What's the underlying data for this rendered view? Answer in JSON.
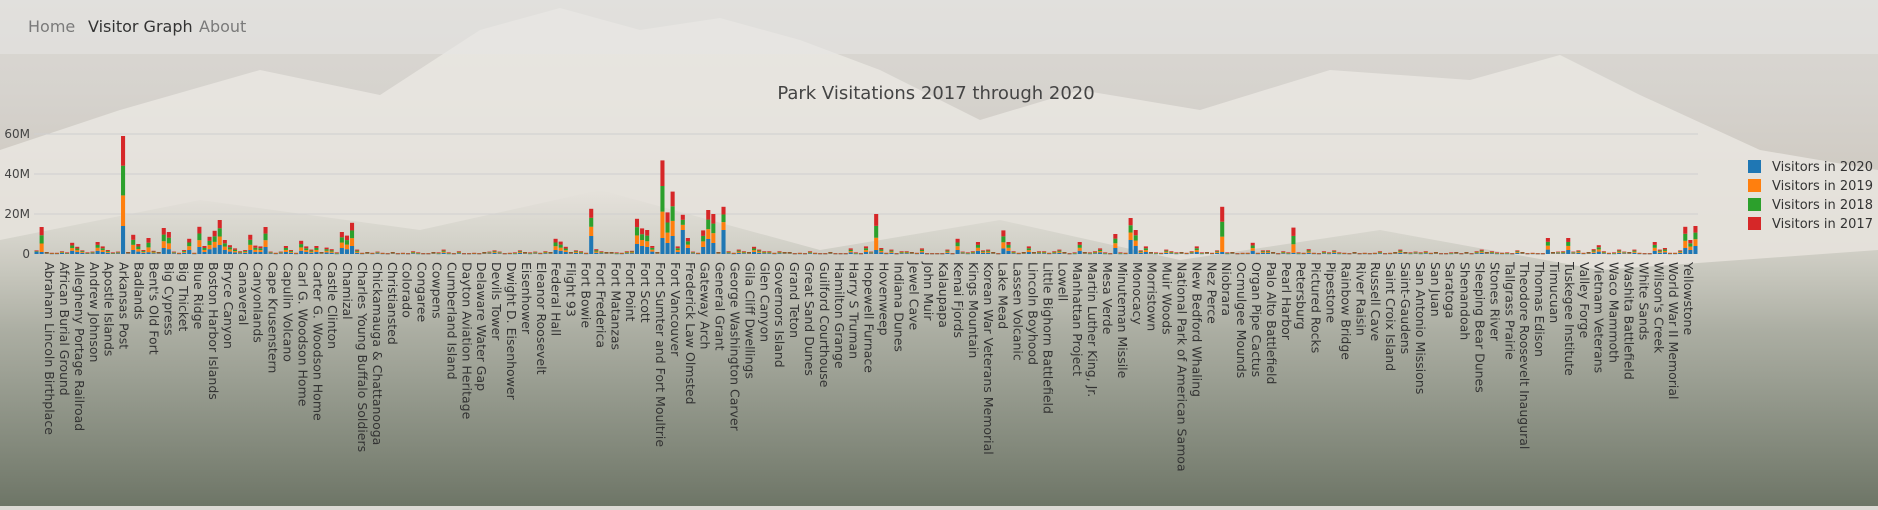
{
  "nav": {
    "items": [
      {
        "label": "Home",
        "active": false
      },
      {
        "label": "Visitor Graph",
        "active": true
      },
      {
        "label": "About",
        "active": false
      }
    ]
  },
  "colors": {
    "2020": "#1f77b4",
    "2019": "#ff7f0e",
    "2018": "#2ca02c",
    "2017": "#d62728"
  },
  "chart_data": {
    "type": "bar",
    "stacked": true,
    "title": "Park Visitations 2017 through 2020",
    "xlabel": "",
    "ylabel": "",
    "ylim": [
      0,
      60000000
    ],
    "yticks": [
      0,
      20000000,
      40000000,
      60000000
    ],
    "ytick_labels": [
      "0",
      "20M",
      "40M",
      "60M"
    ],
    "grid": true,
    "legend_position": "top-right",
    "legend": [
      "Visitors in 2020",
      "Visitors in 2019",
      "Visitors in 2018",
      "Visitors in 2017"
    ],
    "labeled_categories": [
      "Abraham Lincoln Birthplace",
      "African Burial Ground",
      "Allegheny Portage Railroad",
      "Andrew Johnson",
      "Apostle Islands",
      "Arkansas Post",
      "Badlands",
      "Bent's Old Fort",
      "Big Cypress",
      "Big Thicket",
      "Blue Ridge",
      "Boston Harbor Islands",
      "Bryce Canyon",
      "Canaveral",
      "Canyonlands",
      "Cape Krusenstern",
      "Capulin Volcano",
      "Carl G. Woodson Home",
      "Carter G. Woodson Home",
      "Castle Clinton",
      "Chamizal",
      "Charles Young Buffalo Soldiers",
      "Chickamauga & Chattanooga",
      "Christiansted",
      "Colorado",
      "Congaree",
      "Cowpens",
      "Cumberland Island",
      "Dayton Aviation Heritage",
      "Delaware Water Gap",
      "Devils Tower",
      "Dwight D. Eisenhower",
      "Eisenhower",
      "Eleanor Roosevelt",
      "Federal Hall",
      "Flight 93",
      "Fort Bowie",
      "Fort Frederica",
      "Fort Matanzas",
      "Fort Point",
      "Fort Scott",
      "Fort Sumter and Fort Moultrie",
      "Fort Vancouver",
      "Frederick Law Olmsted",
      "Gateway Arch",
      "General Grant",
      "George Washington Carver",
      "Gila Cliff Dwellings",
      "Glen Canyon",
      "Governors Island",
      "Grand Teton",
      "Great Sand Dunes",
      "Guilford Courthouse",
      "Hamilton Grange",
      "Harry S Truman",
      "Hopewell Furnace",
      "Hovenweep",
      "Indiana Dunes",
      "Jewel Cave",
      "John Muir",
      "Kalaupapa",
      "Kenai Fjords",
      "Kings Mountain",
      "Korean War Veterans Memorial",
      "Lake Mead",
      "Lassen Volcanic",
      "Lincoln Boyhood",
      "Little Bighorn Battlefield",
      "Lowell",
      "Manhattan Project",
      "Martin Luther King, Jr.",
      "Mesa Verde",
      "Minuteman Missile",
      "Monocacy",
      "Morristown",
      "Muir Woods",
      "National Park of American Samoa",
      "New Bedford Whaling",
      "Nez Perce",
      "Niobrara",
      "Ocmulgee Mounds",
      "Organ Pipe Cactus",
      "Palo Alto Battlefield",
      "Pearl Harbor",
      "Petersburg",
      "Pictured Rocks",
      "Pipestone",
      "Rainbow Bridge",
      "River Raisin",
      "Russell Cave",
      "Saint Croix Island",
      "Saint-Gaudens",
      "San Antonio Missions",
      "San Juan",
      "Saratoga",
      "Shenandoah",
      "Sleeping Bear Dunes",
      "Stones River",
      "Tallgrass Prairie",
      "Theodore Roosevelt Inaugural",
      "Thomas Edison",
      "Timucuan",
      "Tuskegee Institute",
      "Valley Forge",
      "Vietnam Veterans",
      "Waco Mammoth",
      "Washita Battlefield",
      "White Sands",
      "Wilson's Creek",
      "World War II Memorial",
      "Yellowstone"
    ],
    "bars_per_label": 3,
    "series": [
      {
        "name": "Visitors in 2020",
        "values": [
          1.3,
          1.0,
          0.3,
          0.2,
          0.2,
          0.5,
          0.3,
          1.6,
          1.0,
          0.6,
          0.3,
          0.4,
          1.6,
          1.0,
          0.6,
          0.3,
          0.4,
          14.0,
          0.4,
          2.0,
          1.2,
          0.6,
          0.9,
          0.4,
          0.4,
          3.0,
          2.4,
          0.4,
          0.2,
          0.6,
          2.0,
          0.2,
          3.5,
          1.0,
          2.4,
          3.2,
          4.5,
          2.0,
          1.2,
          0.8,
          0.4,
          0.6,
          2.0,
          1.0,
          1.0,
          3.5,
          0.4,
          0.2,
          0.4,
          1.0,
          0.6,
          0.2,
          1.6,
          1.0,
          0.6,
          1.0,
          0.3,
          0.8,
          0.6,
          0.2,
          3.0,
          2.4,
          4.0,
          0.6,
          0.2,
          0.3,
          0.2,
          0.4,
          0.2,
          0.1,
          0.3,
          0.1,
          0.2,
          0.1,
          0.4,
          0.2,
          0.1,
          0.1,
          0.3,
          0.2,
          0.6,
          0.2,
          0.1,
          0.4,
          0.1,
          0.1,
          0.2,
          0.1,
          0.3,
          0.3,
          0.5,
          0.3,
          0.1,
          0.2,
          0.2,
          0.5,
          0.3,
          0.2,
          0.3,
          0.2,
          0.4,
          0.3,
          2.0,
          1.6,
          1.0,
          0.3,
          0.5,
          0.4,
          0.2,
          9.0,
          0.6,
          0.4,
          0.3,
          0.3,
          0.2,
          0.2,
          0.4,
          0.4,
          5.0,
          4.0,
          3.5,
          1.2,
          0.3,
          8.0,
          5.5,
          9.0,
          1.0,
          12.0,
          3.0,
          0.4,
          0.2,
          3.5,
          7.5,
          5.5,
          0.3,
          12.0,
          0.4,
          0.2,
          0.6,
          0.4,
          0.3,
          1.0,
          0.6,
          0.4,
          0.4,
          0.2,
          0.4,
          0.3,
          0.3,
          0.1,
          0.2,
          0.1,
          0.4,
          0.2,
          0.1,
          0.1,
          0.3,
          0.1,
          0.1,
          0.1,
          0.8,
          0.2,
          0.1,
          1.0,
          0.3,
          2.0,
          0.8,
          0.2,
          0.6,
          0.1,
          0.4,
          0.4,
          0.3,
          0.2,
          0.8,
          0.1,
          0.1,
          0.1,
          0.1,
          0.6,
          0.1,
          2.0,
          0.3,
          0.2,
          0.4,
          1.6,
          0.5,
          0.6,
          0.3,
          0.1,
          2.8,
          1.6,
          0.4,
          0.2,
          0.3,
          1.0,
          0.3,
          0.4,
          0.4,
          0.2,
          0.4,
          0.6,
          0.3,
          0.1,
          0.2,
          1.6,
          0.3,
          0.2,
          0.4,
          0.8,
          0.2,
          0.1,
          3.0,
          0.2,
          0.2,
          7.0,
          4.0,
          0.5,
          1.0,
          0.3,
          0.2,
          0.2,
          0.6,
          0.4,
          0.2,
          0.3,
          0.2,
          0.4,
          1.0,
          0.2,
          0.3,
          0.2,
          0.5,
          1.0,
          0.2,
          0.3,
          0.1,
          0.2,
          0.2,
          1.6,
          0.2,
          0.5,
          0.5,
          0.3,
          0.1,
          0.4,
          0.2,
          0.6,
          0.2,
          0.2,
          0.6,
          0.2,
          0.1,
          0.4,
          0.2,
          0.5,
          0.2,
          0.2,
          0.1,
          0.3,
          0.1,
          0.2,
          0.1,
          0.2,
          0.4,
          0.1,
          0.2,
          0.3,
          0.6,
          0.3,
          0.2,
          0.3,
          0.2,
          0.4,
          0.2,
          0.3,
          0.1,
          0.1,
          0.2,
          0.3,
          0.1,
          0.3,
          0.1,
          0.4,
          0.6,
          0.3,
          0.4,
          0.2,
          0.2,
          0.2,
          0.1,
          0.5,
          0.3,
          0.1,
          0.2,
          0.1,
          0.1,
          2.2,
          0.3,
          0.3,
          0.4,
          2.0,
          0.3,
          0.5,
          0.2,
          0.3,
          0.6,
          1.2,
          0.4,
          0.2,
          0.2,
          0.6,
          0.3,
          0.3,
          0.6,
          0.2,
          0.1,
          0.1,
          1.6,
          0.6,
          0.8,
          0.2,
          0.2,
          0.5,
          3.0,
          2.0,
          4.0
        ]
      },
      {
        "name": "Visitors in 2019",
        "values": []
      },
      {
        "name": "Visitors in 2018",
        "values": []
      },
      {
        "name": "Visitors in 2017",
        "values": []
      }
    ],
    "units": "millions",
    "totals_millions": [
      1.8,
      13.5,
      1.0,
      0.6,
      0.6,
      1.4,
      0.8,
      5.6,
      3.6,
      1.8,
      0.8,
      1.2,
      6.0,
      3.8,
      2.0,
      0.8,
      1.2,
      59.0,
      1.0,
      9.6,
      5.0,
      2.0,
      8.0,
      1.6,
      1.0,
      13.0,
      11.0,
      1.2,
      0.6,
      2.0,
      7.6,
      0.6,
      13.6,
      4.0,
      8.6,
      11.6,
      17.0,
      7.0,
      4.4,
      2.8,
      1.4,
      2.0,
      9.6,
      4.2,
      3.8,
      13.5,
      1.2,
      0.6,
      1.2,
      4.0,
      2.0,
      0.6,
      6.6,
      3.8,
      2.2,
      4.0,
      1.0,
      3.2,
      2.4,
      0.8,
      11.0,
      9.2,
      15.6,
      2.2,
      0.6,
      1.0,
      0.6,
      1.2,
      0.6,
      0.4,
      1.0,
      0.4,
      0.6,
      0.4,
      1.4,
      0.8,
      0.4,
      0.4,
      1.0,
      0.8,
      2.2,
      0.8,
      0.4,
      1.4,
      0.4,
      0.4,
      0.6,
      0.4,
      1.0,
      1.2,
      1.8,
      1.2,
      0.4,
      0.6,
      0.8,
      1.8,
      1.0,
      0.8,
      1.2,
      0.6,
      1.4,
      1.0,
      7.6,
      6.2,
      3.6,
      1.0,
      1.8,
      1.4,
      0.6,
      22.6,
      2.4,
      1.4,
      1.0,
      1.0,
      0.8,
      0.6,
      1.4,
      1.6,
      17.6,
      12.8,
      12.0,
      4.0,
      1.0,
      46.8,
      20.8,
      31.2,
      3.8,
      19.6,
      8.0,
      1.2,
      0.6,
      11.8,
      22.0,
      20.0,
      1.0,
      23.6,
      1.4,
      0.6,
      2.2,
      1.4,
      1.0,
      3.6,
      2.2,
      1.4,
      1.4,
      0.6,
      1.4,
      1.0,
      1.0,
      0.4,
      0.6,
      0.4,
      1.4,
      0.6,
      0.4,
      0.4,
      1.0,
      0.4,
      0.4,
      0.4,
      2.8,
      0.8,
      0.4,
      3.8,
      1.2,
      20.0,
      3.0,
      0.6,
      2.2,
      0.4,
      1.4,
      1.4,
      1.0,
      0.6,
      2.8,
      0.4,
      0.4,
      0.4,
      0.4,
      2.2,
      0.4,
      7.6,
      1.2,
      0.8,
      1.4,
      6.0,
      1.8,
      2.2,
      1.0,
      0.4,
      11.8,
      6.0,
      1.4,
      0.6,
      1.0,
      3.8,
      1.0,
      1.4,
      1.4,
      0.6,
      1.4,
      2.2,
      1.0,
      0.4,
      0.8,
      6.0,
      1.0,
      0.8,
      1.4,
      2.8,
      0.8,
      0.4,
      10.0,
      0.8,
      0.6,
      18.0,
      12.0,
      1.8,
      3.8,
      1.0,
      0.8,
      0.6,
      2.2,
      1.4,
      0.8,
      1.0,
      0.6,
      1.4,
      3.8,
      0.8,
      1.0,
      0.6,
      1.8,
      23.6,
      0.8,
      1.0,
      0.4,
      0.6,
      0.6,
      5.6,
      0.6,
      1.8,
      1.8,
      1.0,
      0.4,
      1.4,
      0.8,
      13.2,
      0.8,
      0.6,
      2.4,
      0.6,
      0.4,
      1.4,
      0.8,
      1.8,
      0.8,
      0.6,
      0.4,
      1.0,
      0.4,
      0.6,
      0.4,
      0.6,
      1.4,
      0.4,
      0.6,
      1.0,
      2.2,
      1.0,
      0.8,
      1.2,
      0.8,
      1.4,
      0.6,
      1.0,
      0.4,
      0.4,
      0.8,
      1.0,
      0.4,
      1.0,
      0.4,
      1.4,
      2.2,
      1.0,
      1.4,
      0.8,
      0.6,
      0.8,
      0.4,
      1.8,
      1.0,
      0.4,
      0.6,
      0.4,
      0.4,
      8.0,
      1.0,
      1.2,
      1.4,
      8.0,
      1.2,
      1.8,
      0.6,
      1.0,
      2.4,
      4.4,
      1.4,
      0.6,
      0.8,
      2.2,
      1.2,
      1.0,
      2.2,
      0.6,
      0.4,
      0.4,
      6.0,
      2.2,
      3.0,
      0.6,
      0.6,
      1.8,
      13.6,
      7.0,
      14.0
    ]
  }
}
